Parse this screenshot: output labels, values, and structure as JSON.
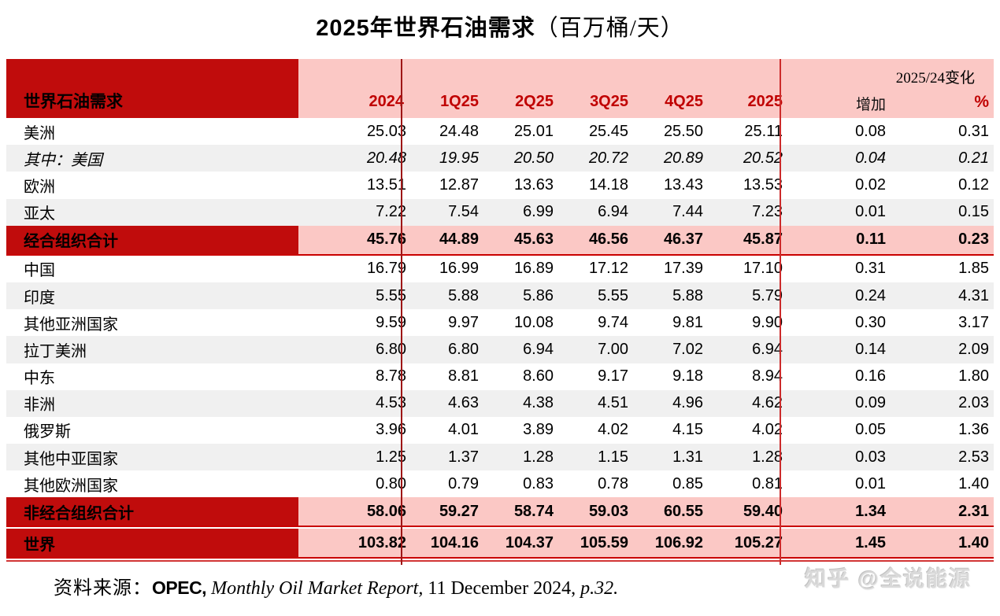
{
  "title": {
    "main": "2025年世界石油需求",
    "unit": "（百万桶/天）"
  },
  "table_header": {
    "corner_label": "世界石油需求",
    "change_header": "2025/24变化"
  },
  "chart_data": {
    "type": "table",
    "title": "2025年世界石油需求（百万桶/天）",
    "columns": [
      "2024",
      "1Q25",
      "2Q25",
      "3Q25",
      "4Q25",
      "2025",
      "增加",
      "%"
    ],
    "change_columns_group": "2025/24变化",
    "rows": [
      {
        "label": "美洲",
        "style": "normal",
        "values": [
          "25.03",
          "24.48",
          "25.01",
          "25.45",
          "25.50",
          "25.11",
          "0.08",
          "0.31"
        ]
      },
      {
        "label": "其中：美国",
        "style": "italic",
        "values": [
          "20.48",
          "19.95",
          "20.50",
          "20.72",
          "20.89",
          "20.52",
          "0.04",
          "0.21"
        ]
      },
      {
        "label": "欧洲",
        "style": "normal",
        "values": [
          "13.51",
          "12.87",
          "13.63",
          "14.18",
          "13.43",
          "13.53",
          "0.02",
          "0.12"
        ]
      },
      {
        "label": "亚太",
        "style": "normal",
        "values": [
          "7.22",
          "7.54",
          "6.99",
          "6.94",
          "7.44",
          "7.23",
          "0.01",
          "0.15"
        ]
      },
      {
        "label": "经合组织合计",
        "style": "total",
        "values": [
          "45.76",
          "44.89",
          "45.63",
          "46.56",
          "46.37",
          "45.87",
          "0.11",
          "0.23"
        ]
      },
      {
        "label": "中国",
        "style": "normal",
        "values": [
          "16.79",
          "16.99",
          "16.89",
          "17.12",
          "17.39",
          "17.10",
          "0.31",
          "1.85"
        ]
      },
      {
        "label": "印度",
        "style": "normal",
        "values": [
          "5.55",
          "5.88",
          "5.86",
          "5.55",
          "5.88",
          "5.79",
          "0.24",
          "4.31"
        ]
      },
      {
        "label": "其他亚洲国家",
        "style": "normal",
        "values": [
          "9.59",
          "9.97",
          "10.08",
          "9.74",
          "9.81",
          "9.90",
          "0.30",
          "3.17"
        ]
      },
      {
        "label": "拉丁美洲",
        "style": "normal",
        "values": [
          "6.80",
          "6.80",
          "6.94",
          "7.00",
          "7.02",
          "6.94",
          "0.14",
          "2.09"
        ]
      },
      {
        "label": "中东",
        "style": "normal",
        "values": [
          "8.78",
          "8.81",
          "8.60",
          "9.17",
          "9.18",
          "8.94",
          "0.16",
          "1.80"
        ]
      },
      {
        "label": "非洲",
        "style": "normal",
        "values": [
          "4.53",
          "4.63",
          "4.38",
          "4.51",
          "4.96",
          "4.62",
          "0.09",
          "2.03"
        ]
      },
      {
        "label": "俄罗斯",
        "style": "normal",
        "values": [
          "3.96",
          "4.01",
          "3.89",
          "4.02",
          "4.15",
          "4.02",
          "0.05",
          "1.36"
        ]
      },
      {
        "label": "其他中亚国家",
        "style": "normal",
        "values": [
          "1.25",
          "1.37",
          "1.28",
          "1.15",
          "1.31",
          "1.28",
          "0.03",
          "2.53"
        ]
      },
      {
        "label": "其他欧洲国家",
        "style": "normal",
        "values": [
          "0.80",
          "0.79",
          "0.83",
          "0.78",
          "0.85",
          "0.81",
          "0.01",
          "1.40"
        ]
      },
      {
        "label": "非经合组织合计",
        "style": "total",
        "values": [
          "58.06",
          "59.27",
          "58.74",
          "59.03",
          "60.55",
          "59.40",
          "1.34",
          "2.31"
        ]
      },
      {
        "label": "世界",
        "style": "total world",
        "values": [
          "103.82",
          "104.16",
          "104.37",
          "105.59",
          "106.92",
          "105.27",
          "1.45",
          "1.40"
        ]
      }
    ]
  },
  "source": {
    "prefix": "资料来源：",
    "org": "OPEC,",
    "report": " Monthly Oil Market Report, ",
    "date": "11 December 2024, ",
    "page": " p.32."
  },
  "watermark": "知乎 @全说能源",
  "colors": {
    "header_dark_red": "#c00c0c",
    "header_pink": "#fbc8c5",
    "stripe_gray": "#f0f0f0",
    "column_header_red": "#c00000",
    "rule_red": "#c90000"
  }
}
